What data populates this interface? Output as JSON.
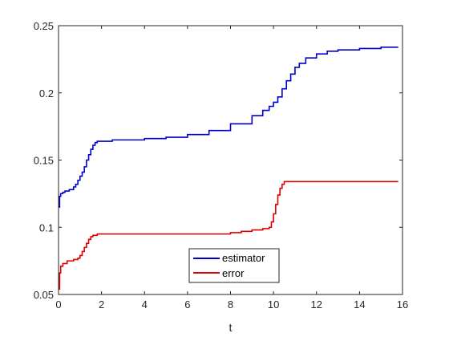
{
  "chart_data": {
    "type": "line",
    "title": "",
    "xlabel": "t",
    "ylabel": "",
    "xlim": [
      0,
      16
    ],
    "ylim": [
      0.05,
      0.25
    ],
    "xticks": [
      0,
      2,
      4,
      6,
      8,
      10,
      12,
      14,
      16
    ],
    "xtick_labels": [
      "0",
      "2",
      "4",
      "6",
      "8",
      "10",
      "12",
      "14",
      "16"
    ],
    "yticks": [
      0.05,
      0.1,
      0.15,
      0.2,
      0.25
    ],
    "ytick_labels": [
      "0.05",
      "0.1",
      "0.15",
      "0.2",
      "0.25"
    ],
    "grid": false,
    "legend_position": "bottom-center",
    "series": [
      {
        "name": "estimator",
        "color": "#0000cc",
        "step": true,
        "x": [
          0,
          0.05,
          0.1,
          0.2,
          0.3,
          0.5,
          0.7,
          0.8,
          0.9,
          1.0,
          1.1,
          1.2,
          1.3,
          1.4,
          1.5,
          1.6,
          1.7,
          1.8,
          2.0,
          2.5,
          3,
          4,
          5,
          6,
          7,
          8,
          9,
          9.5,
          9.8,
          10.0,
          10.2,
          10.4,
          10.6,
          10.8,
          11.0,
          11.2,
          11.5,
          12.0,
          12.5,
          13,
          14,
          15,
          15.8
        ],
        "y": [
          0.115,
          0.123,
          0.125,
          0.126,
          0.127,
          0.128,
          0.13,
          0.132,
          0.135,
          0.138,
          0.141,
          0.145,
          0.15,
          0.154,
          0.158,
          0.161,
          0.163,
          0.164,
          0.164,
          0.165,
          0.165,
          0.166,
          0.167,
          0.169,
          0.172,
          0.177,
          0.183,
          0.187,
          0.19,
          0.193,
          0.197,
          0.203,
          0.209,
          0.214,
          0.219,
          0.222,
          0.226,
          0.229,
          0.231,
          0.232,
          0.233,
          0.234,
          0.234
        ]
      },
      {
        "name": "error",
        "color": "#dd0000",
        "step": true,
        "x": [
          0,
          0.05,
          0.1,
          0.2,
          0.4,
          0.7,
          0.9,
          1.0,
          1.1,
          1.2,
          1.3,
          1.4,
          1.5,
          1.6,
          1.8,
          2.0,
          3,
          4,
          5,
          6,
          7,
          7.5,
          8,
          8.5,
          9,
          9.5,
          9.8,
          9.9,
          10.0,
          10.1,
          10.2,
          10.3,
          10.4,
          10.5,
          11,
          12,
          13,
          14,
          15,
          15.8
        ],
        "y": [
          0.054,
          0.066,
          0.071,
          0.073,
          0.075,
          0.076,
          0.077,
          0.079,
          0.082,
          0.085,
          0.088,
          0.091,
          0.093,
          0.094,
          0.095,
          0.095,
          0.095,
          0.095,
          0.095,
          0.095,
          0.095,
          0.095,
          0.096,
          0.097,
          0.098,
          0.099,
          0.1,
          0.104,
          0.11,
          0.117,
          0.124,
          0.129,
          0.132,
          0.134,
          0.134,
          0.134,
          0.134,
          0.134,
          0.134,
          0.134
        ]
      }
    ]
  }
}
